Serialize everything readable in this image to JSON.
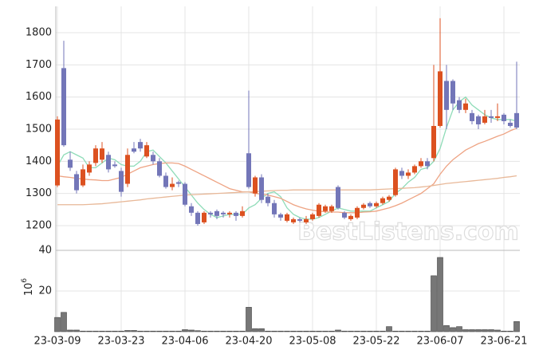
{
  "chart_data": {
    "type": "candlestick",
    "watermark": "BestListens.com",
    "categories": [
      "23-03-09",
      null,
      null,
      null,
      null,
      null,
      null,
      null,
      null,
      null,
      "23-03-23",
      null,
      null,
      null,
      null,
      null,
      null,
      null,
      null,
      null,
      "23-04-06",
      null,
      null,
      null,
      null,
      null,
      null,
      null,
      null,
      null,
      "23-04-20",
      null,
      null,
      null,
      null,
      null,
      null,
      null,
      null,
      null,
      "23-05-08",
      null,
      null,
      null,
      null,
      null,
      null,
      null,
      null,
      null,
      "23-05-22",
      null,
      null,
      null,
      null,
      null,
      null,
      null,
      null,
      null,
      "23-06-07",
      null,
      null,
      null,
      null,
      null,
      null,
      null,
      null,
      null,
      "23-06-21",
      null,
      null
    ],
    "open": [
      1325,
      1690,
      1405,
      1360,
      1325,
      1365,
      1395,
      1405,
      1420,
      1390,
      1370,
      1330,
      1440,
      1460,
      1415,
      1420,
      1400,
      1355,
      1320,
      1335,
      1330,
      1260,
      1240,
      1210,
      1240,
      1245,
      1240,
      1235,
      1240,
      1230,
      1425,
      1300,
      1350,
      1290,
      1270,
      1235,
      1215,
      1210,
      1220,
      1210,
      1220,
      1230,
      1245,
      1245,
      1320,
      1240,
      1220,
      1225,
      1255,
      1270,
      1260,
      1270,
      1280,
      1295,
      1370,
      1355,
      1365,
      1385,
      1400,
      1410,
      1510,
      1650,
      1650,
      1590,
      1560,
      1550,
      1540,
      1520,
      1540,
      1535,
      1545,
      1520,
      1550
    ],
    "high": [
      1540,
      1775,
      1430,
      1370,
      1390,
      1400,
      1450,
      1460,
      1430,
      1400,
      1380,
      1440,
      1460,
      1470,
      1460,
      1430,
      1410,
      1365,
      1350,
      1340,
      1335,
      1270,
      1245,
      1245,
      1245,
      1250,
      1245,
      1245,
      1245,
      1260,
      1620,
      1355,
      1360,
      1300,
      1280,
      1240,
      1240,
      1225,
      1225,
      1230,
      1240,
      1270,
      1265,
      1265,
      1325,
      1245,
      1235,
      1260,
      1270,
      1275,
      1275,
      1290,
      1295,
      1380,
      1380,
      1375,
      1390,
      1410,
      1410,
      1700,
      1845,
      1700,
      1655,
      1600,
      1595,
      1560,
      1545,
      1560,
      1560,
      1580,
      1550,
      1530,
      1710
    ],
    "low": [
      1320,
      1445,
      1370,
      1300,
      1320,
      1355,
      1385,
      1395,
      1365,
      1380,
      1290,
      1320,
      1425,
      1430,
      1410,
      1390,
      1350,
      1315,
      1310,
      1320,
      1260,
      1230,
      1200,
      1205,
      1225,
      1220,
      1225,
      1225,
      1215,
      1225,
      1315,
      1290,
      1270,
      1260,
      1225,
      1215,
      1210,
      1205,
      1210,
      1205,
      1215,
      1225,
      1240,
      1240,
      1250,
      1220,
      1215,
      1220,
      1250,
      1255,
      1255,
      1265,
      1275,
      1290,
      1345,
      1345,
      1360,
      1380,
      1375,
      1400,
      1505,
      1500,
      1560,
      1550,
      1550,
      1515,
      1500,
      1515,
      1520,
      1525,
      1515,
      1505,
      1500
    ],
    "close": [
      1530,
      1450,
      1380,
      1310,
      1375,
      1390,
      1440,
      1440,
      1375,
      1385,
      1305,
      1420,
      1430,
      1440,
      1450,
      1400,
      1355,
      1320,
      1330,
      1330,
      1265,
      1240,
      1205,
      1240,
      1235,
      1230,
      1235,
      1240,
      1230,
      1245,
      1320,
      1350,
      1280,
      1270,
      1235,
      1225,
      1235,
      1220,
      1215,
      1220,
      1235,
      1265,
      1260,
      1260,
      1255,
      1225,
      1230,
      1255,
      1265,
      1260,
      1270,
      1285,
      1290,
      1375,
      1355,
      1365,
      1385,
      1400,
      1385,
      1510,
      1680,
      1560,
      1580,
      1560,
      1580,
      1525,
      1515,
      1540,
      1535,
      1540,
      1525,
      1510,
      1505
    ],
    "up_color": "#dc5120",
    "down_color": "#7376b8",
    "lines": [
      {
        "color": "#8fdcb8",
        "values": [
          1385,
          1420,
          1430,
          1420,
          1410,
          1380,
          1380,
          1395,
          1410,
          1405,
          1390,
          1385,
          1385,
          1400,
          1430,
          1435,
          1415,
          1395,
          1370,
          1345,
          1320,
          1295,
          1270,
          1250,
          1235,
          1225,
          1230,
          1235,
          1235,
          1235,
          1255,
          1265,
          1285,
          1300,
          1305,
          1290,
          1255,
          1235,
          1225,
          1220,
          1220,
          1225,
          1235,
          1245,
          1255,
          1250,
          1245,
          1245,
          1245,
          1245,
          1255,
          1265,
          1275,
          1300,
          1315,
          1335,
          1350,
          1375,
          1380,
          1400,
          1440,
          1505,
          1560,
          1585,
          1600,
          1575,
          1560,
          1545,
          1535,
          1530,
          1530,
          1530,
          1525
        ]
      },
      {
        "color": "#eea383",
        "values": [
          1355,
          1352,
          1350,
          1347,
          1345,
          1343,
          1342,
          1340,
          1340,
          1345,
          1350,
          1360,
          1370,
          1380,
          1385,
          1390,
          1393,
          1395,
          1395,
          1393,
          1385,
          1375,
          1365,
          1355,
          1345,
          1335,
          1325,
          1315,
          1310,
          1305,
          1305,
          1300,
          1298,
          1295,
          1290,
          1285,
          1275,
          1265,
          1258,
          1252,
          1248,
          1245,
          1243,
          1242,
          1242,
          1240,
          1240,
          1240,
          1242,
          1243,
          1245,
          1250,
          1255,
          1262,
          1270,
          1280,
          1290,
          1300,
          1315,
          1330,
          1360,
          1385,
          1405,
          1420,
          1435,
          1445,
          1455,
          1462,
          1470,
          1478,
          1485,
          1495,
          1503
        ]
      },
      {
        "color": "#e8b898",
        "values": [
          1265,
          1265,
          1265,
          1265,
          1265,
          1266,
          1267,
          1268,
          1270,
          1272,
          1274,
          1276,
          1278,
          1280,
          1283,
          1285,
          1287,
          1289,
          1291,
          1293,
          1295,
          1296,
          1297,
          1298,
          1299,
          1300,
          1301,
          1302,
          1303,
          1304,
          1305,
          1306,
          1307,
          1308,
          1309,
          1310,
          1310,
          1311,
          1311,
          1311,
          1311,
          1311,
          1311,
          1311,
          1311,
          1311,
          1311,
          1311,
          1311,
          1311,
          1312,
          1313,
          1314,
          1315,
          1316,
          1317,
          1318,
          1320,
          1322,
          1325,
          1328,
          1331,
          1333,
          1335,
          1337,
          1339,
          1341,
          1343,
          1345,
          1347,
          1350,
          1352,
          1355
        ]
      }
    ],
    "ylim": [
      1123,
      1882
    ],
    "yticks": [
      1200,
      1300,
      1400,
      1500,
      1600,
      1700,
      1800
    ],
    "grid": true,
    "volume": {
      "type": "bar",
      "color": "#777777",
      "y_label": {
        "base": "10",
        "exponent": "6"
      },
      "ylim": [
        0,
        40
      ],
      "yticks": [
        20,
        40
      ],
      "values": [
        7,
        9.5,
        0.8,
        0.8,
        0.3,
        0.3,
        0.3,
        0.3,
        0.3,
        0.3,
        0.3,
        0.6,
        0.6,
        0.3,
        0.3,
        0.3,
        0.3,
        0.3,
        0.3,
        0.3,
        1,
        0.8,
        0.5,
        0.3,
        0.3,
        0.3,
        0.3,
        0.3,
        0.3,
        0.3,
        12,
        1.5,
        1.5,
        0.3,
        0.3,
        0.3,
        0.3,
        0.3,
        0.3,
        0.3,
        0.3,
        0.3,
        0.3,
        0.3,
        0.8,
        0.3,
        0.3,
        0.3,
        0.3,
        0.3,
        0.3,
        0.3,
        2.5,
        0.3,
        0.3,
        0.3,
        0.3,
        0.3,
        0.3,
        27.5,
        36.5,
        3,
        2,
        2.5,
        1,
        1,
        1,
        1,
        1,
        0.8,
        0.3,
        0.3,
        5
      ]
    }
  }
}
